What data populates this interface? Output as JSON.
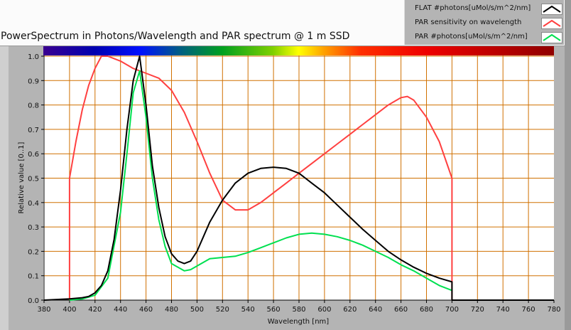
{
  "chart_data": {
    "type": "line",
    "title": "PowerSpectrum in Photons/Wavelength and PAR spectrum @ 1 m SSD",
    "xlabel": "Wavelength [nm]",
    "ylabel": "Relative value [0..1]",
    "xlim": [
      380,
      780
    ],
    "ylim": [
      0,
      1
    ],
    "xticks": [
      380,
      400,
      420,
      440,
      460,
      480,
      500,
      520,
      540,
      560,
      580,
      600,
      620,
      640,
      660,
      680,
      700,
      720,
      740,
      760,
      780
    ],
    "yticks": [
      "0.0",
      "0.1",
      "0.2",
      "0.3",
      "0.4",
      "0.5",
      "0.6",
      "0.7",
      "0.8",
      "0.9",
      "1.0"
    ],
    "grid": true,
    "legend_position": "top-right",
    "series": [
      {
        "name": "FLAT #photons[uMol/s/m^2/nm]",
        "color": "#000000",
        "x": [
          380,
          400,
          410,
          415,
          420,
          425,
          430,
          435,
          440,
          445,
          450,
          455,
          460,
          465,
          470,
          475,
          480,
          485,
          490,
          495,
          500,
          505,
          510,
          520,
          530,
          540,
          550,
          560,
          570,
          580,
          590,
          600,
          610,
          620,
          630,
          640,
          650,
          660,
          670,
          680,
          690,
          700,
          700,
          780
        ],
        "y": [
          0,
          0.005,
          0.01,
          0.015,
          0.03,
          0.06,
          0.12,
          0.25,
          0.45,
          0.7,
          0.9,
          1.0,
          0.8,
          0.55,
          0.38,
          0.26,
          0.19,
          0.16,
          0.15,
          0.16,
          0.2,
          0.26,
          0.32,
          0.41,
          0.48,
          0.52,
          0.54,
          0.545,
          0.54,
          0.52,
          0.48,
          0.44,
          0.39,
          0.34,
          0.29,
          0.245,
          0.2,
          0.165,
          0.135,
          0.11,
          0.09,
          0.075,
          0,
          0
        ]
      },
      {
        "name": "PAR sensitivity on wavelength",
        "color": "#ff4040",
        "x": [
          400,
          400,
          405,
          410,
          415,
          420,
          425,
          430,
          435,
          440,
          450,
          460,
          470,
          480,
          490,
          500,
          510,
          520,
          530,
          540,
          550,
          560,
          570,
          580,
          590,
          600,
          610,
          620,
          630,
          640,
          650,
          660,
          665,
          670,
          680,
          690,
          700,
          700
        ],
        "y": [
          0,
          0.5,
          0.65,
          0.78,
          0.88,
          0.95,
          1.0,
          1.0,
          0.99,
          0.98,
          0.95,
          0.93,
          0.91,
          0.86,
          0.77,
          0.65,
          0.52,
          0.41,
          0.37,
          0.37,
          0.4,
          0.44,
          0.48,
          0.52,
          0.56,
          0.6,
          0.64,
          0.68,
          0.72,
          0.76,
          0.8,
          0.83,
          0.835,
          0.82,
          0.75,
          0.65,
          0.5,
          0
        ]
      },
      {
        "name": "PAR #photons[uMol/s/m^2/nm]",
        "color": "#00e050",
        "x": [
          400,
          410,
          420,
          430,
          440,
          445,
          450,
          455,
          460,
          465,
          470,
          475,
          480,
          490,
          495,
          500,
          510,
          520,
          530,
          540,
          550,
          560,
          570,
          580,
          590,
          600,
          610,
          620,
          630,
          640,
          650,
          660,
          670,
          680,
          690,
          700
        ],
        "y": [
          0,
          0.005,
          0.02,
          0.09,
          0.36,
          0.6,
          0.85,
          0.94,
          0.75,
          0.5,
          0.33,
          0.22,
          0.15,
          0.12,
          0.125,
          0.14,
          0.17,
          0.175,
          0.18,
          0.195,
          0.215,
          0.235,
          0.255,
          0.27,
          0.275,
          0.27,
          0.26,
          0.245,
          0.225,
          0.2,
          0.175,
          0.145,
          0.12,
          0.09,
          0.06,
          0.04
        ]
      }
    ]
  }
}
